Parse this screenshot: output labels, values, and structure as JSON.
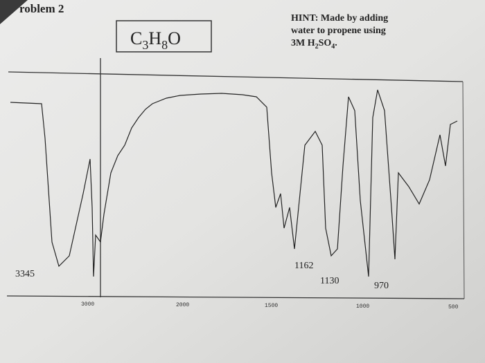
{
  "header": {
    "title": "roblem 2"
  },
  "formula": {
    "parts": [
      "C",
      "3",
      "H",
      "8",
      "O"
    ]
  },
  "hint": {
    "lines": [
      "HINT: Made by adding",
      "water to propene using"
    ],
    "last_line": [
      "3M H",
      "2",
      "SO",
      "4",
      "."
    ]
  },
  "spectrum": {
    "peak_labels": [
      "3345",
      "1162",
      "1130",
      "970"
    ],
    "axis_ticks": [
      "3000",
      "2000",
      "1500",
      "1000",
      "500"
    ]
  }
}
